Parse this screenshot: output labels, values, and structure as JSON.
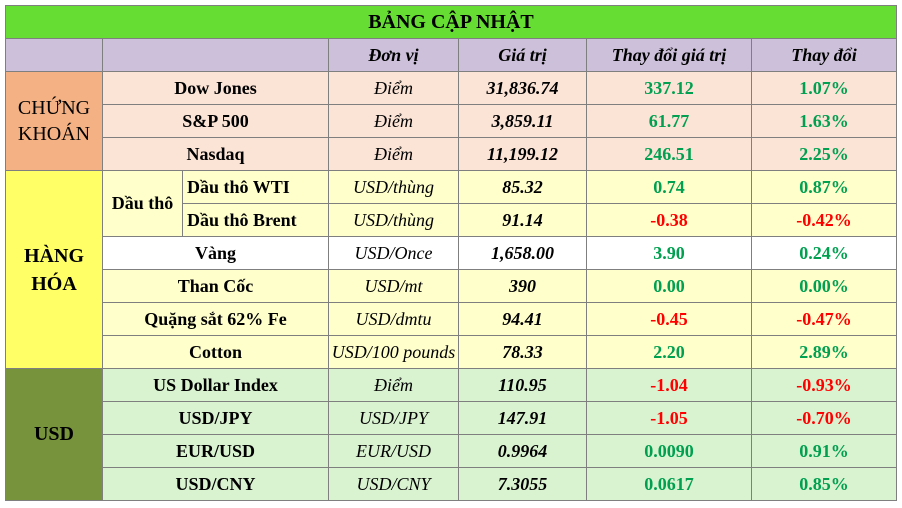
{
  "title": "BẢNG CẬP NHẬT",
  "headers": [
    "Đơn vị",
    "Giá trị",
    "Thay đổi giá trị",
    "Thay đổi"
  ],
  "groups": {
    "stocks": "CHỨNG KHOÁN",
    "commodities": "HÀNG HÓA",
    "usd": "USD",
    "crude": "Dầu thô"
  },
  "rows": [
    {
      "name": "Dow Jones",
      "unit": "Điểm",
      "value": "31,836.74",
      "change": "337.12",
      "pct": "1.07%"
    },
    {
      "name": "S&P 500",
      "unit": "Điểm",
      "value": "3,859.11",
      "change": "61.77",
      "pct": "1.63%"
    },
    {
      "name": "Nasdaq",
      "unit": "Điểm",
      "value": "11,199.12",
      "change": "246.51",
      "pct": "2.25%"
    },
    {
      "name": "Dầu thô WTI",
      "unit": "USD/thùng",
      "value": "85.32",
      "change": "0.74",
      "pct": "0.87%"
    },
    {
      "name": "Dầu thô Brent",
      "unit": "USD/thùng",
      "value": "91.14",
      "change": "-0.38",
      "pct": "-0.42%"
    },
    {
      "name": "Vàng",
      "unit": "USD/Once",
      "value": "1,658.00",
      "change": "3.90",
      "pct": "0.24%"
    },
    {
      "name": "Than Cốc",
      "unit": "USD/mt",
      "value": "390",
      "change": "0.00",
      "pct": "0.00%"
    },
    {
      "name": "Quặng sắt 62% Fe",
      "unit": "USD/dmtu",
      "value": "94.41",
      "change": "-0.45",
      "pct": "-0.47%"
    },
    {
      "name": "Cotton",
      "unit": "USD/100 pounds",
      "value": "78.33",
      "change": "2.20",
      "pct": "2.89%"
    },
    {
      "name": "US Dollar Index",
      "unit": "Điểm",
      "value": "110.95",
      "change": "-1.04",
      "pct": "-0.93%"
    },
    {
      "name": "USD/JPY",
      "unit": "USD/JPY",
      "value": "147.91",
      "change": "-1.05",
      "pct": "-0.70%"
    },
    {
      "name": "EUR/USD",
      "unit": "EUR/USD",
      "value": "0.9964",
      "change": "0.0090",
      "pct": "0.91%"
    },
    {
      "name": "USD/CNY",
      "unit": "USD/CNY",
      "value": "7.3055",
      "change": "0.0617",
      "pct": "0.85%"
    }
  ],
  "colors": {
    "title_bg": "#66dd33",
    "header_bg": "#ccc0da",
    "stocks_bg": "#f4b183",
    "commodities_bg": "#ffff66",
    "usd_bg": "#77933c",
    "positive": "#00a050",
    "negative": "#ff0000"
  }
}
